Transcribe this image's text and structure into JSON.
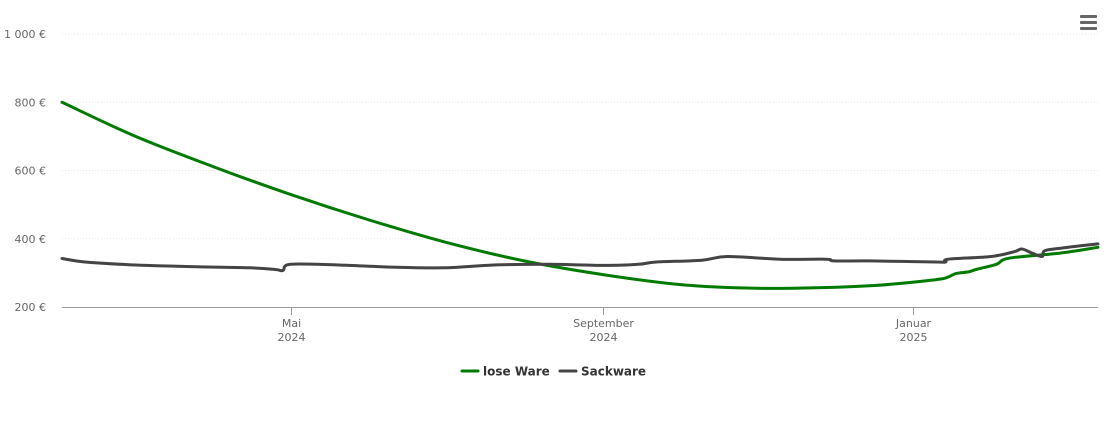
{
  "chart_data": {
    "type": "line",
    "title": "",
    "xlabel": "",
    "ylabel": "",
    "ylim": [
      200,
      1000
    ],
    "yticks": [
      "200 €",
      "400 €",
      "600 €",
      "800 €",
      "1 000 €"
    ],
    "ytick_values": [
      200,
      400,
      600,
      800,
      1000
    ],
    "xlim": [
      "2024-02-01",
      "2025-03-15"
    ],
    "xticks": [
      {
        "date": "2024-05-01",
        "label1": "Mai",
        "label2": "2024"
      },
      {
        "date": "2024-09-01",
        "label1": "September",
        "label2": "2024"
      },
      {
        "date": "2025-01-01",
        "label1": "Januar",
        "label2": "2025"
      }
    ],
    "grid": true,
    "legend": "bottom-center",
    "series": [
      {
        "name": "lose Ware",
        "color": "#007a00",
        "points": [
          [
            "2024-02-01",
            800
          ],
          [
            "2024-03-01",
            700
          ],
          [
            "2024-04-01",
            610
          ],
          [
            "2024-05-01",
            530
          ],
          [
            "2024-06-01",
            455
          ],
          [
            "2024-07-01",
            390
          ],
          [
            "2024-08-01",
            335
          ],
          [
            "2024-09-01",
            295
          ],
          [
            "2024-10-01",
            266
          ],
          [
            "2024-10-25",
            256
          ],
          [
            "2024-11-15",
            255
          ],
          [
            "2024-12-15",
            262
          ],
          [
            "2025-01-10",
            280
          ],
          [
            "2025-01-15",
            288
          ],
          [
            "2025-01-18",
            298
          ],
          [
            "2025-01-23",
            303
          ],
          [
            "2025-01-26",
            310
          ],
          [
            "2025-02-03",
            325
          ],
          [
            "2025-02-08",
            343
          ],
          [
            "2025-02-28",
            358
          ],
          [
            "2025-03-15",
            375
          ]
        ]
      },
      {
        "name": "Sackware",
        "color": "#444444",
        "points": [
          [
            "2024-02-01",
            342
          ],
          [
            "2024-02-10",
            332
          ],
          [
            "2024-03-01",
            323
          ],
          [
            "2024-03-25",
            318
          ],
          [
            "2024-04-15",
            315
          ],
          [
            "2024-04-25",
            310
          ],
          [
            "2024-04-28",
            307
          ],
          [
            "2024-05-01",
            325
          ],
          [
            "2024-05-20",
            323
          ],
          [
            "2024-06-10",
            317
          ],
          [
            "2024-07-01",
            315
          ],
          [
            "2024-07-20",
            323
          ],
          [
            "2024-08-10",
            325
          ],
          [
            "2024-08-25",
            323
          ],
          [
            "2024-09-01",
            322
          ],
          [
            "2024-09-15",
            325
          ],
          [
            "2024-09-22",
            332
          ],
          [
            "2024-10-10",
            337
          ],
          [
            "2024-10-20",
            348
          ],
          [
            "2024-11-10",
            340
          ],
          [
            "2024-11-28",
            340
          ],
          [
            "2024-12-01",
            335
          ],
          [
            "2024-12-15",
            335
          ],
          [
            "2025-01-10",
            332
          ],
          [
            "2025-01-14",
            332
          ],
          [
            "2025-01-15",
            340
          ],
          [
            "2025-02-01",
            348
          ],
          [
            "2025-02-10",
            362
          ],
          [
            "2025-02-13",
            370
          ],
          [
            "2025-02-17",
            358
          ],
          [
            "2025-02-21",
            348
          ],
          [
            "2025-02-22",
            365
          ],
          [
            "2025-03-01",
            373
          ],
          [
            "2025-03-15",
            385
          ]
        ]
      }
    ]
  },
  "toolbar": {
    "menu_icon": "hamburger-menu-icon"
  }
}
